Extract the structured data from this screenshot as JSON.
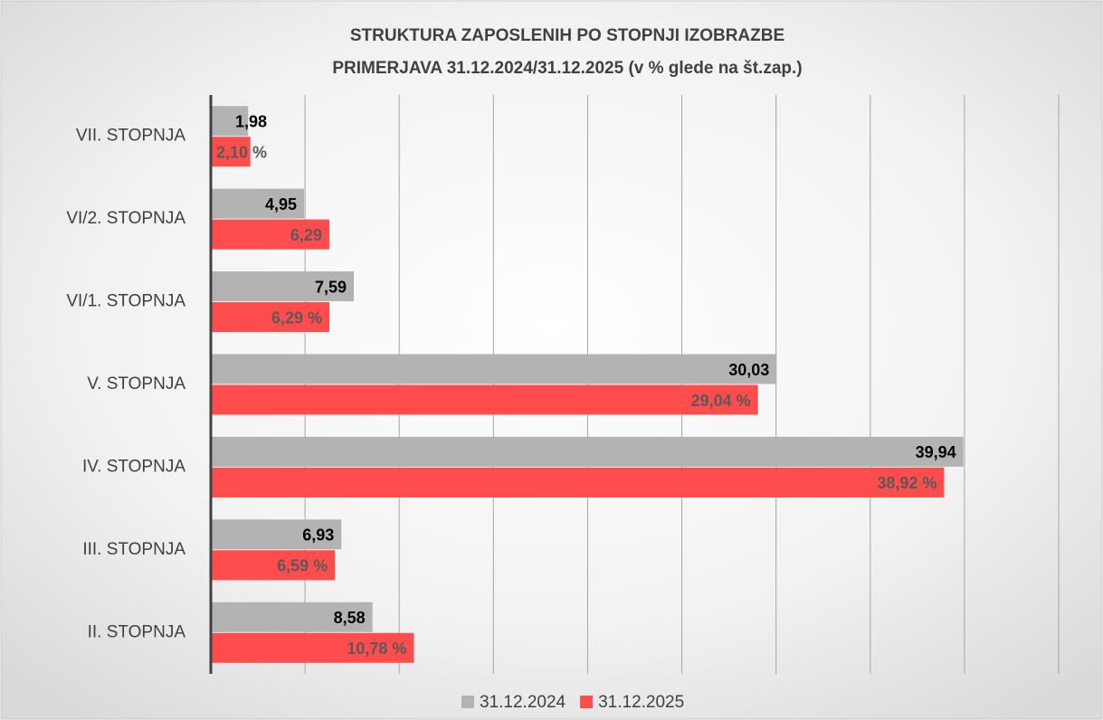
{
  "chart_data": {
    "type": "hbar",
    "title": "STRUKTURA ZAPOSLENIH PO STOPNJI IZOBRAZBE",
    "subtitle": "PRIMERJAVA 31.12.2024/31.12.2025 (v % glede na št.zap.)",
    "categories": [
      "VII. STOPNJA",
      "VI/2. STOPNJA",
      "VI/1. STOPNJA",
      "V. STOPNJA",
      "IV. STOPNJA",
      "III. STOPNJA",
      "II. STOPNJA"
    ],
    "series": [
      {
        "name": "31.12.2024",
        "color": "#b3b3b3",
        "values": [
          1.98,
          4.95,
          7.59,
          30.03,
          39.94,
          6.93,
          8.58
        ],
        "value_labels": [
          "1,98",
          "4,95",
          "7,59",
          "30,03",
          "39,94",
          "6,93",
          "8,58"
        ]
      },
      {
        "name": "31.12.2025",
        "color": "#ff4d4d",
        "values": [
          2.1,
          6.29,
          6.29,
          29.04,
          38.92,
          6.59,
          10.78
        ],
        "value_labels": [
          "2,10 %",
          "6,29",
          "6,29 %",
          "29,04 %",
          "38,92 %",
          "6,59 %",
          "10,78 %"
        ]
      }
    ],
    "xlim": [
      0,
      45
    ],
    "xticks": [
      0,
      5,
      10,
      15,
      20,
      25,
      30,
      35,
      40,
      45
    ],
    "grid": true,
    "legend": "bottom"
  }
}
